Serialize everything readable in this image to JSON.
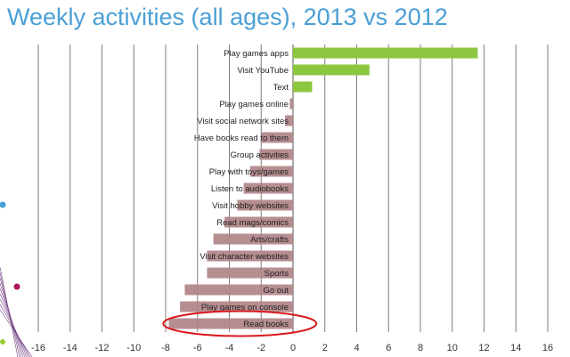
{
  "slide": {
    "title": "Weekly activities (all ages), 2013 vs 2012"
  },
  "colors": {
    "positive_bar": "#8cc63f",
    "negative_bar": "#b08488",
    "highlight_ellipse": "#d7191c",
    "gridline": "#7f7f7f",
    "title": "#4a9fd6"
  },
  "chart_data": {
    "type": "bar",
    "orientation": "horizontal",
    "title": "Weekly activities (all ages), 2013 vs 2012",
    "xlabel": "",
    "ylabel": "",
    "xlim": [
      -16,
      16
    ],
    "x_ticks": [
      -16,
      -14,
      -12,
      -10,
      -8,
      -6,
      -4,
      -2,
      0,
      2,
      4,
      6,
      8,
      10,
      12,
      14,
      16
    ],
    "grid": "vertical",
    "categories": [
      "Play games apps",
      "Visit YouTube",
      "Text",
      "Play games online",
      "Visit social network sites",
      "Have books read to them",
      "Group activities",
      "Play with toys/games",
      "Listen to audiobooks",
      "Visit hobby websites",
      "Read mags/comics",
      "Arts/crafts",
      "Visit character websites",
      "Sports",
      "Go out",
      "Play games on console",
      "Read books"
    ],
    "values": [
      11.6,
      4.8,
      1.2,
      -0.2,
      -0.5,
      -2.0,
      -2.1,
      -2.7,
      -3.1,
      -3.5,
      -4.3,
      -5.0,
      -5.4,
      -5.4,
      -6.8,
      -7.1,
      -7.8
    ],
    "annotation": {
      "type": "ellipse",
      "target": "Read books",
      "note": ""
    }
  }
}
